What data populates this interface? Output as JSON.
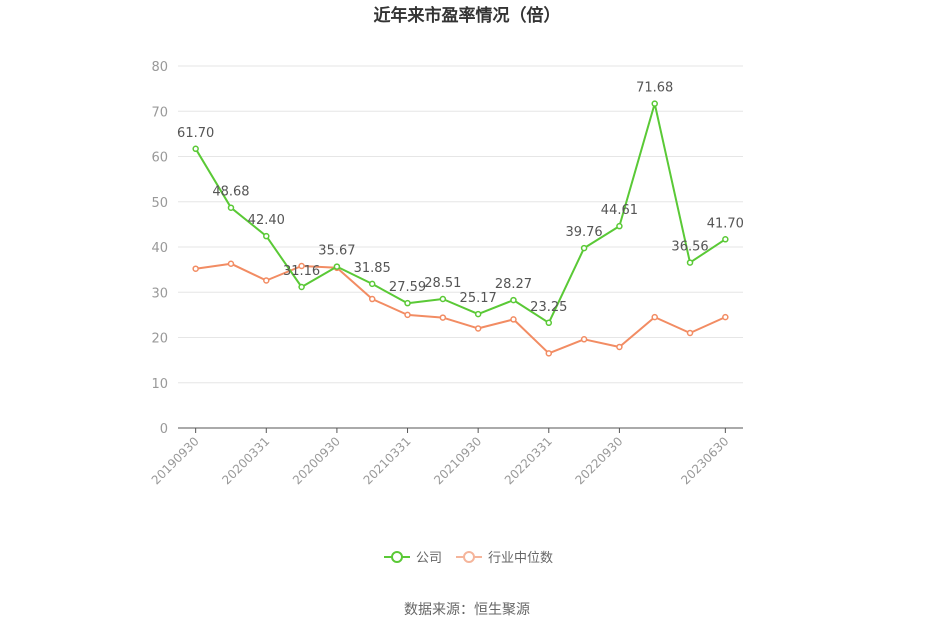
{
  "chart_data": {
    "type": "line",
    "title": "近年来市盈率情况（倍）",
    "xlabel": "",
    "ylabel": "",
    "ylim": [
      0,
      80
    ],
    "yticks": [
      0,
      10,
      20,
      30,
      40,
      50,
      60,
      70,
      80
    ],
    "x": [
      "20190930",
      "20191231",
      "20200331",
      "20200630",
      "20200930",
      "20201231",
      "20210331",
      "20210630",
      "20210930",
      "20211231",
      "20220331",
      "20220630",
      "20220930",
      "20221231",
      "20230331",
      "20230630"
    ],
    "xtick_labels": [
      "20190930",
      "20200331",
      "20200930",
      "20210331",
      "20210930",
      "20220331",
      "20220930",
      "20230630"
    ],
    "grid": true,
    "legend_position": "bottom",
    "series": [
      {
        "name": "公司",
        "color": "#5ac936",
        "values": [
          61.7,
          48.68,
          42.4,
          31.16,
          35.67,
          31.85,
          27.59,
          28.51,
          25.17,
          28.27,
          23.25,
          39.76,
          44.61,
          71.68,
          36.56,
          41.7
        ],
        "labels": [
          "61.70",
          "48.68",
          "42.40",
          "31.16",
          "35.67",
          "31.85",
          "27.59",
          "28.51",
          "25.17",
          "28.27",
          "23.25",
          "39.76",
          "44.61",
          "71.68",
          "36.56",
          "41.70"
        ]
      },
      {
        "name": "行业中位数",
        "color": "#f28c63",
        "values": [
          35.2,
          36.3,
          32.6,
          35.8,
          35.4,
          28.5,
          25.0,
          24.4,
          22.0,
          24.0,
          16.5,
          19.6,
          17.9,
          24.5,
          21.0,
          24.5
        ]
      }
    ],
    "source": "数据来源：恒生聚源"
  }
}
